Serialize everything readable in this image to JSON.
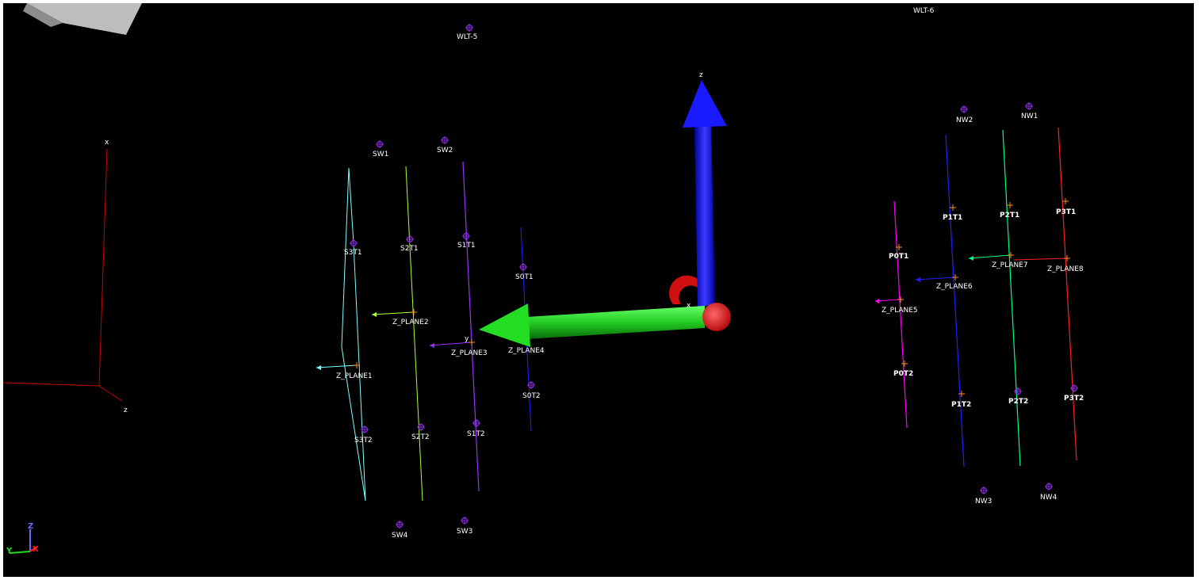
{
  "viewport": {
    "background": "#000000"
  },
  "labels": {
    "wlt5": "WLT-5",
    "wlt6": "WLT-6",
    "sw1": "SW1",
    "sw2": "SW2",
    "sw3": "SW3",
    "sw4": "SW4",
    "nw1": "NW1",
    "nw2": "NW2",
    "nw3": "NW3",
    "nw4": "NW4",
    "s3t1": "S3T1",
    "s2t1": "S2T1",
    "s1t1": "S1T1",
    "s0t1": "S0T1",
    "s3t2": "S3T2",
    "s2t2": "S2T2",
    "s1t2": "S1T2",
    "s0t2": "S0T2",
    "p0t1": "P0T1",
    "p1t1": "P1T1",
    "p2t1": "P2T1",
    "p3t1": "P3T1",
    "p0t2": "P0T2",
    "p1t2": "P1T2",
    "p2t2": "P2T2",
    "p3t2": "P3T2",
    "zplane1": "Z_PLANE1",
    "zplane2": "Z_PLANE2",
    "zplane3": "Z_PLANE3",
    "zplane4": "Z_PLANE4",
    "zplane5": "Z_PLANE5",
    "zplane6": "Z_PLANE6",
    "zplane7": "Z_PLANE7",
    "zplane8": "Z_PLANE8"
  },
  "axes_labels": {
    "frame_x": "x",
    "frame_z": "z",
    "gizmo_z": "z",
    "gizmo_y": "y",
    "gizmo_x": "x",
    "corner_z": "Z",
    "corner_y": "Y",
    "corner_x": "X"
  },
  "colors": {
    "marker": "#8a2be2",
    "wire_cyan": "#7fffff",
    "wire_yellowgreen": "#adff2f",
    "wire_purple": "#9b30ff",
    "wire_blue": "#2020ff",
    "wire_magenta": "#ff00ff",
    "wire_green": "#00ff7f",
    "wire_red": "#ff2020",
    "axis_red": "#cc0000",
    "gizmo_blue": "#1a1aff",
    "gizmo_green": "#22dd22",
    "gizmo_red": "#ff1010"
  }
}
